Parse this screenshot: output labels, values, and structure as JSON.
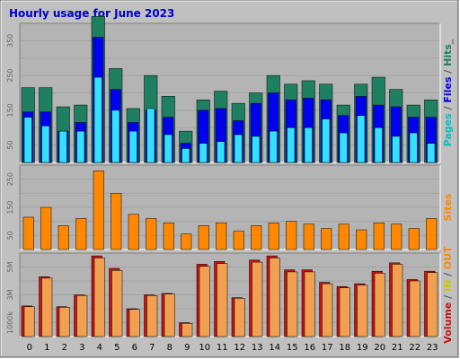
{
  "chart_data": {
    "type": "bar",
    "title": "Hourly usage for June 2023",
    "categories": [
      "0",
      "1",
      "2",
      "3",
      "4",
      "5",
      "6",
      "7",
      "8",
      "9",
      "10",
      "11",
      "12",
      "13",
      "14",
      "15",
      "16",
      "17",
      "18",
      "19",
      "20",
      "21",
      "22",
      "23"
    ],
    "panels": [
      {
        "id": "top",
        "ylim": [
          0,
          400
        ],
        "ticks": [
          "50",
          "150",
          "250",
          "350"
        ],
        "tick_values": [
          50,
          150,
          250,
          350
        ],
        "side_label": [
          "Pages",
          " / ",
          "Files",
          " / ",
          "Hits",
          "_"
        ],
        "series": [
          {
            "name": "Hits",
            "color": "#1e8060",
            "values": [
              215,
              215,
              160,
              165,
              420,
              270,
              155,
              250,
              190,
              90,
              180,
              205,
              170,
              200,
              250,
              225,
              235,
              225,
              165,
              225,
              245,
              210,
              165,
              180
            ]
          },
          {
            "name": "Files",
            "color": "#0000ee",
            "values": [
              145,
              145,
              90,
              115,
              360,
              210,
              115,
              150,
              130,
              55,
              150,
              155,
              120,
              170,
              200,
              180,
              185,
              180,
              135,
              190,
              165,
              160,
              130,
              130
            ]
          },
          {
            "name": "Pages",
            "color": "#33e0ff",
            "values": [
              130,
              105,
              90,
              90,
              245,
              150,
              90,
              155,
              80,
              40,
              55,
              60,
              80,
              75,
              90,
              100,
              100,
              125,
              85,
              135,
              100,
              75,
              85,
              55
            ]
          }
        ]
      },
      {
        "id": "middle",
        "ylim": [
          0,
          300
        ],
        "ticks": [
          "50",
          "150",
          "250"
        ],
        "tick_values": [
          50,
          150,
          250
        ],
        "side_label": [
          "Sites"
        ],
        "series": [
          {
            "name": "Sites",
            "color": "#ff8800",
            "values": [
              115,
              150,
              85,
              110,
              280,
              200,
              125,
              110,
              95,
              55,
              85,
              95,
              65,
              85,
              95,
              100,
              90,
              75,
              90,
              70,
              95,
              90,
              75,
              110
            ]
          }
        ]
      },
      {
        "id": "bottom",
        "ylim": [
          0,
          6000
        ],
        "ticks": [
          "1000k",
          "3M",
          "5M"
        ],
        "tick_values": [
          1000,
          3000,
          5000
        ],
        "side_label": [
          "Volume",
          " / ",
          "IN",
          " / ",
          "OUT"
        ],
        "series": [
          {
            "name": "Volume",
            "color": "#cc1111",
            "values": [
              2200,
              4300,
              2150,
              3000,
              5800,
              4900,
              2000,
              3000,
              3100,
              1000,
              5200,
              5400,
              2800,
              5500,
              5800,
              4800,
              4800,
              3900,
              3600,
              3800,
              4700,
              5300,
              4100,
              4700
            ]
          },
          {
            "name": "OUT",
            "color": "#f0a050",
            "values": [
              2150,
              4200,
              2100,
              2950,
              5650,
              4750,
              1950,
              2950,
              3050,
              950,
              5050,
              5250,
              2750,
              5350,
              5650,
              4650,
              4650,
              3800,
              3500,
              3700,
              4550,
              5200,
              4000,
              4600
            ]
          }
        ]
      }
    ]
  },
  "colors": {
    "background": "#c0c0c0",
    "plot": "#b4b4b4",
    "grid": "#a3a3a3",
    "title": "#0000cc",
    "side": {
      "Pages": "#00c0c0",
      "Files": "#0000ee",
      "Hits": "#1e8060",
      "Sites": "#ff8800",
      "Volume": "#cc1111",
      "IN": "#c8c800",
      "OUT": "#ff8800",
      "sep": "#555555"
    }
  }
}
